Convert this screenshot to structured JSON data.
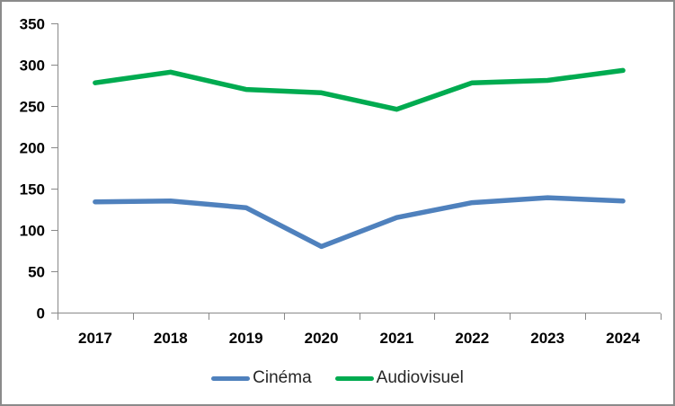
{
  "chart_data": {
    "type": "line",
    "title": "",
    "xlabel": "",
    "ylabel": "",
    "categories": [
      "2017",
      "2018",
      "2019",
      "2020",
      "2021",
      "2022",
      "2023",
      "2024"
    ],
    "series": [
      {
        "name": "Cinéma",
        "color": "#4F81BD",
        "values": [
          134,
          135,
          127,
          80,
          115,
          133,
          139,
          135
        ]
      },
      {
        "name": "Audiovisuel",
        "color": "#00AB50",
        "values": [
          278,
          291,
          270,
          266,
          246,
          278,
          281,
          293
        ]
      }
    ],
    "ylim": [
      0,
      350
    ],
    "y_ticks": [
      0,
      50,
      100,
      150,
      200,
      250,
      300,
      350
    ],
    "grid": false,
    "legend_position": "bottom",
    "axis_color": "#898989",
    "frame_border_color": "#8B8B8B",
    "background_color": "#FFFFFF"
  }
}
